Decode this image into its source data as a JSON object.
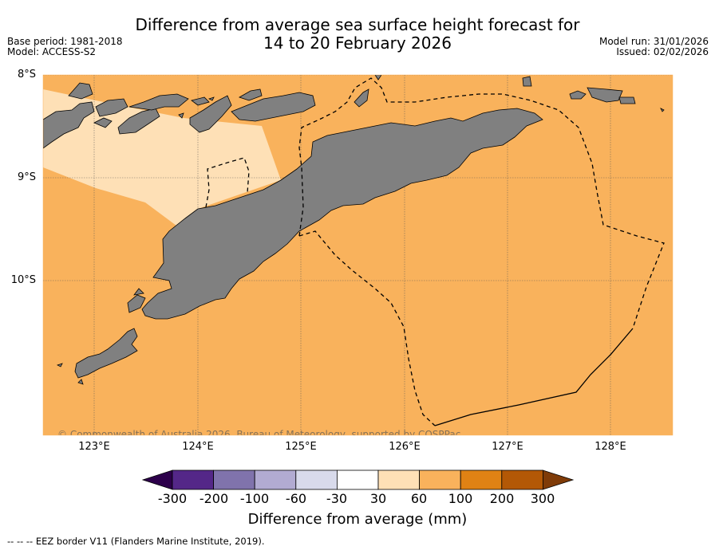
{
  "title": {
    "line1": "Difference from average sea surface height forecast for",
    "line2": "14 to 20 February 2026"
  },
  "meta_left": {
    "base_period": "Base period: 1981-2018",
    "model": "Model: ACCESS-S2"
  },
  "meta_right": {
    "model_run": "Model run: 31/01/2026",
    "issued": "Issued: 02/02/2026"
  },
  "map": {
    "lat_labels": [
      "8°S",
      "9°S",
      "10°S"
    ],
    "lon_labels": [
      "123°E",
      "124°E",
      "125°E",
      "126°E",
      "127°E",
      "128°E"
    ],
    "copyright": "© Commonwealth of Australia 2026, Bureau of Meteorology, supported by COSPPac",
    "ocean_color": "#f9b25c",
    "pale_color": "#fee0b6",
    "land_color": "#808080",
    "ocean_class": "60 to 100 mm",
    "pale_class": "30 to 60 mm"
  },
  "colorbar": {
    "ticks": [
      "-300",
      "-200",
      "-100",
      "-60",
      "-30",
      "30",
      "60",
      "100",
      "200",
      "300"
    ],
    "colors": [
      "#2d004b",
      "#542788",
      "#8073ac",
      "#b2abd2",
      "#d8daeb",
      "#ffffff",
      "#fee0b6",
      "#f9b25c",
      "#e08214",
      "#b35806",
      "#7f3b08"
    ],
    "title": "Difference from average (mm)"
  },
  "legend": {
    "eez": "--  --  -- EEZ border V11 (Flanders Marine Institute, 2019)."
  }
}
